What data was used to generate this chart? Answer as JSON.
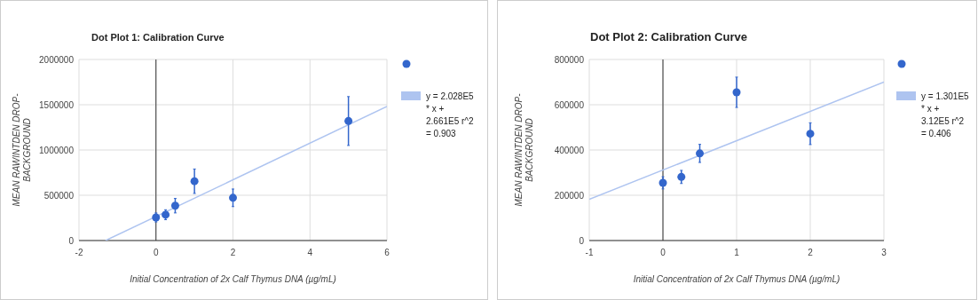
{
  "chart_data": [
    {
      "type": "scatter",
      "title": "Dot Plot 1: Calibration Curve",
      "xlabel": "Initial Concentration of 2x Calf Thymus DNA (µg/mL)",
      "ylabel": "MEAN RAWINTDEN DROP-BACKGROUND",
      "xlim": [
        -2,
        6
      ],
      "xticks": [
        -2,
        0,
        2,
        4,
        6
      ],
      "ylim": [
        0,
        2000000
      ],
      "yticks": [
        0,
        500000,
        1000000,
        1500000,
        2000000
      ],
      "grid": true,
      "legend": "right",
      "series": [
        {
          "color": "#3366cc",
          "marker": "circle",
          "x": [
            0,
            0.25,
            0.5,
            1,
            2,
            5
          ],
          "values": [
            255000,
            285000,
            385000,
            655000,
            472000,
            1320000
          ],
          "errors": [
            50000,
            55000,
            80000,
            135000,
            97000,
            270000
          ]
        },
        {
          "type": "line",
          "name": "y = 2.028E5 * x + 2.661E5 r^2 = 0.903",
          "color": "#aec4f0",
          "x": [
            -1.31,
            6
          ],
          "values": [
            0,
            1480000
          ]
        }
      ]
    },
    {
      "type": "scatter",
      "title": "Dot Plot 2: Calibration Curve",
      "xlabel": "Initial Concentration of 2x Calf Thymus DNA (µg/mL)",
      "ylabel": "MEAN RAWINTDEN DROP-BACKGROUND",
      "xlim": [
        -1,
        3
      ],
      "xticks": [
        -1,
        0,
        1,
        2,
        3
      ],
      "ylim": [
        0,
        800000
      ],
      "yticks": [
        0,
        200000,
        400000,
        600000,
        800000
      ],
      "grid": true,
      "legend": "right",
      "series": [
        {
          "color": "#3366cc",
          "marker": "circle",
          "x": [
            0,
            0.25,
            0.5,
            1,
            2
          ],
          "values": [
            255000,
            281000,
            385000,
            655000,
            472000
          ],
          "errors": [
            27000,
            29000,
            40000,
            67000,
            48000
          ]
        },
        {
          "type": "line",
          "name": "y = 1.301E5 * x + 3.12E5 r^2 = 0.406",
          "color": "#aec4f0",
          "x": [
            -1,
            3
          ],
          "values": [
            182000,
            700000
          ]
        }
      ]
    }
  ]
}
